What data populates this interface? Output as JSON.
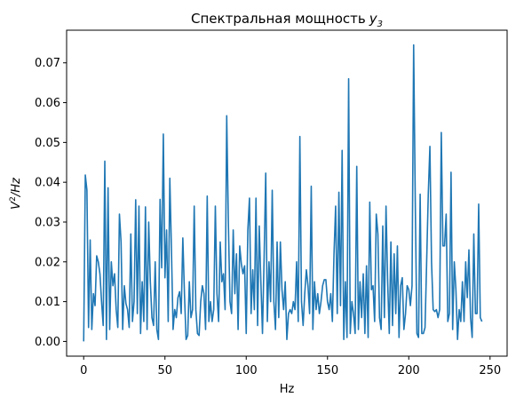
{
  "chart_data": {
    "type": "line",
    "title": "Спектральная мощность",
    "title_symbol": "y",
    "title_subscript": "3",
    "xlabel": "Hz",
    "ylabel_base": "V",
    "ylabel_sup": "2",
    "ylabel_rest": "/Hz",
    "xlim": [
      -10.5,
      260.5
    ],
    "ylim": [
      -0.0037,
      0.0782
    ],
    "grid": false,
    "line_color": "#1f77b4",
    "x_ticks": [
      0,
      50,
      100,
      150,
      200,
      250
    ],
    "x_tick_labels": [
      "0",
      "50",
      "100",
      "150",
      "200",
      "250"
    ],
    "y_ticks": [
      0,
      0.01,
      0.02,
      0.03,
      0.04,
      0.05,
      0.06,
      0.07
    ],
    "y_tick_labels": [
      "0.00",
      "0.01",
      "0.02",
      "0.03",
      "0.04",
      "0.05",
      "0.06",
      "0.07"
    ],
    "series": [
      {
        "x_start": 0,
        "x_step": 1,
        "values": [
          0.0,
          0.0418,
          0.038,
          0.0035,
          0.0255,
          0.003,
          0.012,
          0.009,
          0.0215,
          0.02,
          0.017,
          0.01,
          0.004,
          0.0453,
          0.0005,
          0.0386,
          0.003,
          0.02,
          0.014,
          0.017,
          0.008,
          0.0035,
          0.032,
          0.025,
          0.003,
          0.014,
          0.0095,
          0.008,
          0.0035,
          0.027,
          0.005,
          0.01,
          0.0356,
          0.007,
          0.034,
          0.002,
          0.015,
          0.005,
          0.0338,
          0.003,
          0.03,
          0.015,
          0.006,
          0.004,
          0.02,
          0.003,
          0.0005,
          0.0357,
          0.0185,
          0.0521,
          0.016,
          0.028,
          0.005,
          0.041,
          0.023,
          0.003,
          0.008,
          0.006,
          0.011,
          0.0125,
          0.007,
          0.026,
          0.012,
          0.0005,
          0.0015,
          0.015,
          0.006,
          0.008,
          0.034,
          0.008,
          0.002,
          0.0015,
          0.01,
          0.014,
          0.012,
          0.003,
          0.0365,
          0.005,
          0.01,
          0.005,
          0.008,
          0.034,
          0.012,
          0.005,
          0.025,
          0.015,
          0.017,
          0.008,
          0.0567,
          0.03,
          0.01,
          0.007,
          0.028,
          0.012,
          0.022,
          0.003,
          0.024,
          0.0195,
          0.017,
          0.019,
          0.002,
          0.028,
          0.036,
          0.007,
          0.018,
          0.008,
          0.036,
          0.004,
          0.029,
          0.015,
          0.002,
          0.021,
          0.0423,
          0.005,
          0.02,
          0.01,
          0.038,
          0.01,
          0.003,
          0.025,
          0.006,
          0.025,
          0.013,
          0.008,
          0.015,
          0.0005,
          0.007,
          0.008,
          0.007,
          0.01,
          0.008,
          0.02,
          0.005,
          0.0515,
          0.01,
          0.004,
          0.012,
          0.018,
          0.014,
          0.007,
          0.039,
          0.003,
          0.015,
          0.008,
          0.012,
          0.007,
          0.01,
          0.014,
          0.0155,
          0.0155,
          0.01,
          0.008,
          0.012,
          0.005,
          0.022,
          0.034,
          0.007,
          0.0375,
          0.009,
          0.048,
          0.0005,
          0.015,
          0.001,
          0.066,
          0.002,
          0.01,
          0.007,
          0.002,
          0.044,
          0.003,
          0.015,
          0.006,
          0.017,
          0.002,
          0.019,
          0.001,
          0.035,
          0.013,
          0.014,
          0.005,
          0.032,
          0.027,
          0.006,
          0.003,
          0.029,
          0.006,
          0.034,
          0.015,
          0.002,
          0.025,
          0.004,
          0.022,
          0.007,
          0.024,
          0.001,
          0.014,
          0.016,
          0.003,
          0.007,
          0.014,
          0.013,
          0.009,
          0.014,
          0.0745,
          0.035,
          0.002,
          0.001,
          0.037,
          0.002,
          0.002,
          0.0035,
          0.02,
          0.037,
          0.049,
          0.02,
          0.008,
          0.0075,
          0.008,
          0.006,
          0.008,
          0.0525,
          0.024,
          0.024,
          0.032,
          0.005,
          0.007,
          0.0425,
          0.003,
          0.02,
          0.013,
          0.0005,
          0.008,
          0.005,
          0.015,
          0.005,
          0.02,
          0.011,
          0.023,
          0.006,
          0.001,
          0.027,
          0.007,
          0.007,
          0.0345,
          0.006,
          0.005
        ]
      }
    ]
  }
}
